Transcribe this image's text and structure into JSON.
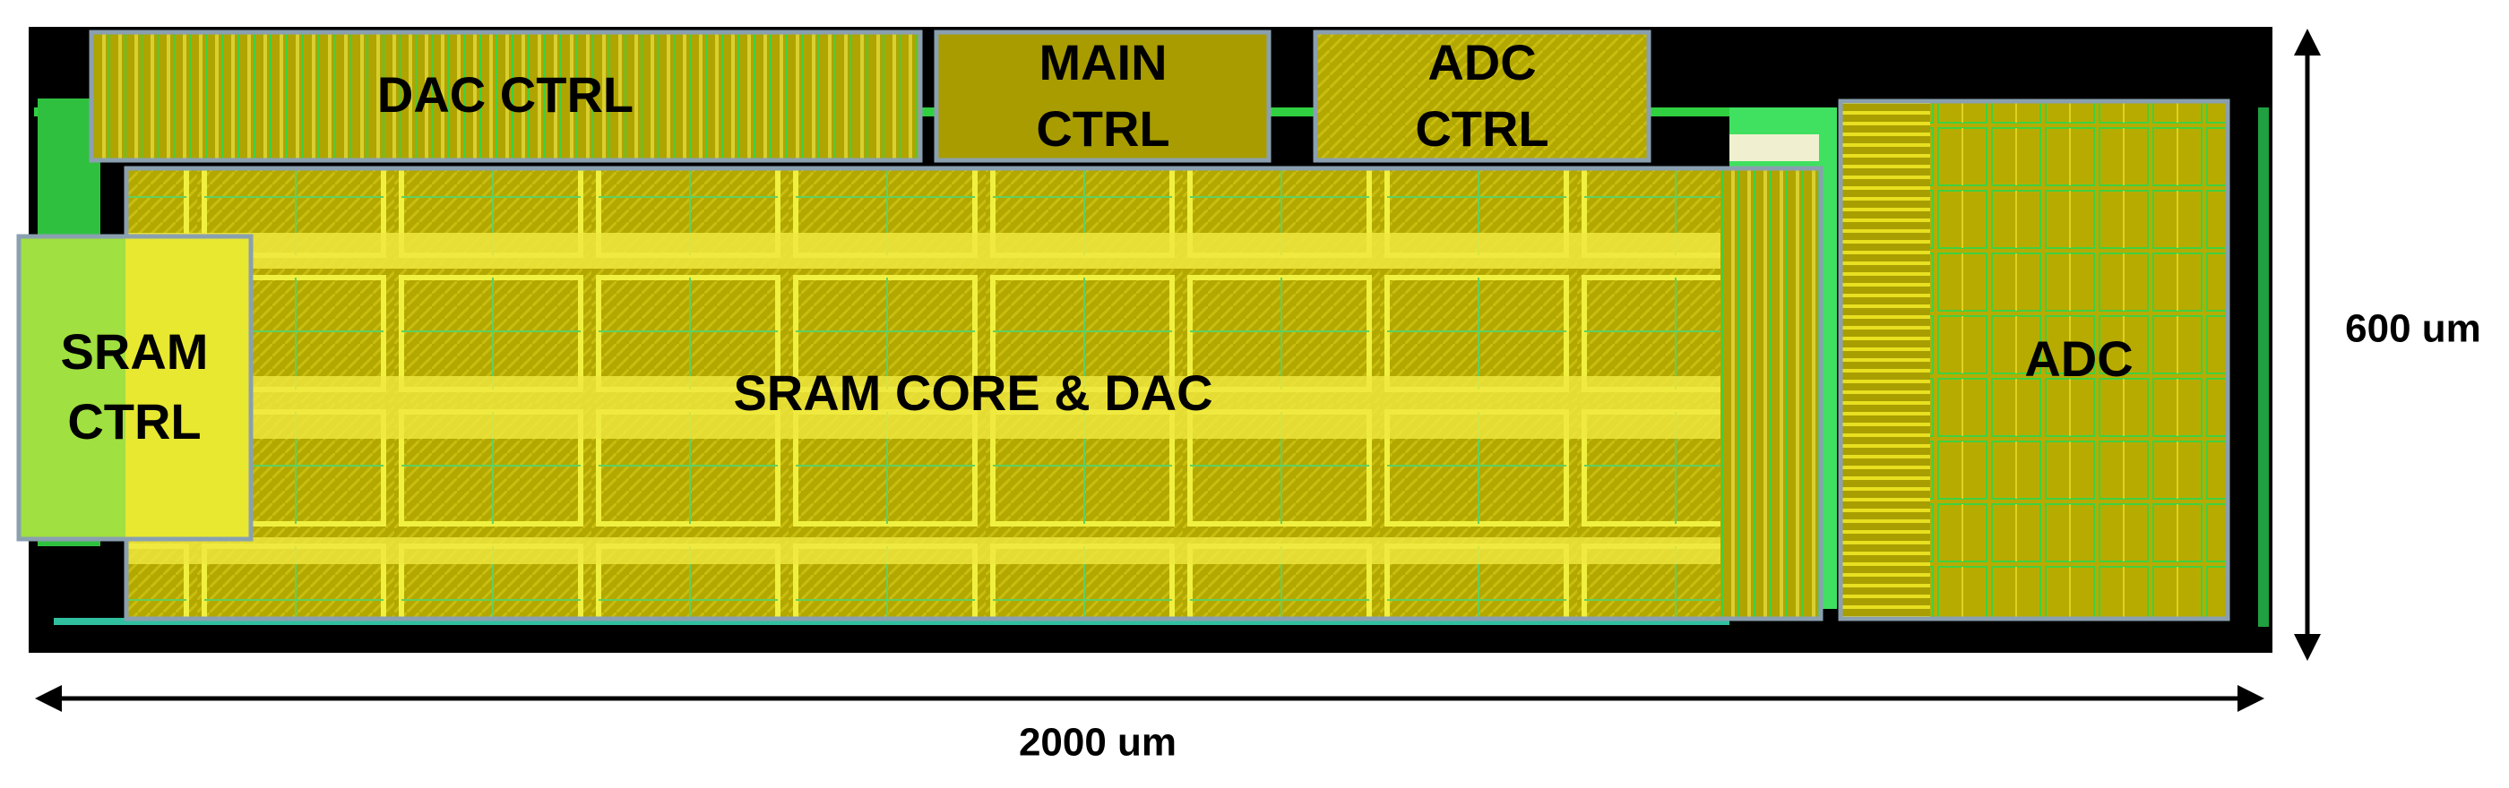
{
  "blocks": [
    {
      "lines": [
        "DAC CTRL"
      ]
    },
    {
      "lines": [
        "MAIN",
        "CTRL"
      ]
    },
    {
      "lines": [
        "ADC",
        "CTRL"
      ]
    },
    {
      "lines": [
        "SRAM",
        "CTRL"
      ]
    },
    {
      "lines": [
        "SRAM CORE & DAC"
      ]
    },
    {
      "lines": [
        "ADC"
      ]
    }
  ],
  "dimensions": {
    "height": "600 um",
    "width": "2000 um"
  }
}
